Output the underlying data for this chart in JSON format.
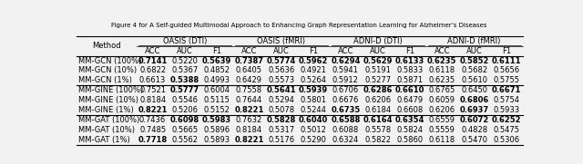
{
  "title": "Figure 4 for A Self-guided Multimodal Approach to Enhancing Graph Representation Learning for Alzheimer’s Diseases",
  "col_groups": [
    "OASIS (DTI)",
    "OASIS (fMRI)",
    "ADNI-D (DTI)",
    "ADNI-D (fMRI)"
  ],
  "sub_cols": [
    "ACC",
    "AUC",
    "F1"
  ],
  "methods": [
    "MM-GCN (100%)",
    "MM-GCN (10%)",
    "MM-GCN (1%)",
    "MM-GINE (100%)",
    "MM-GINE (10%)",
    "MM-GINE (1%)",
    "MM-GAT (100%)",
    "MM-GAT (10%)",
    "MM-GAT (1%)"
  ],
  "data": [
    [
      "0.7141",
      "0.5220",
      "0.5639",
      "0.7387",
      "0.5774",
      "0.5962",
      "0.6294",
      "0.5629",
      "0.6133",
      "0.6235",
      "0.5852",
      "0.6111"
    ],
    [
      "0.6822",
      "0.5367",
      "0.4852",
      "0.6405",
      "0.5636",
      "0.4921",
      "0.5941",
      "0.5191",
      "0.5833",
      "0.6118",
      "0.5682",
      "0.5656"
    ],
    [
      "0.6613",
      "0.5388",
      "0.4993",
      "0.6429",
      "0.5573",
      "0.5264",
      "0.5912",
      "0.5277",
      "0.5871",
      "0.6235",
      "0.5610",
      "0.5755"
    ],
    [
      "0.7521",
      "0.5777",
      "0.6004",
      "0.7558",
      "0.5641",
      "0.5939",
      "0.6706",
      "0.6286",
      "0.6610",
      "0.6765",
      "0.6450",
      "0.6671"
    ],
    [
      "0.8184",
      "0.5546",
      "0.5115",
      "0.7644",
      "0.5294",
      "0.5801",
      "0.6676",
      "0.6206",
      "0.6479",
      "0.6059",
      "0.6806",
      "0.5754"
    ],
    [
      "0.8221",
      "0.5206",
      "0.5152",
      "0.8221",
      "0.5078",
      "0.5244",
      "0.6735",
      "0.6184",
      "0.6608",
      "0.6206",
      "0.6937",
      "0.5933"
    ],
    [
      "0.7436",
      "0.6098",
      "0.5983",
      "0.7632",
      "0.5828",
      "0.6040",
      "0.6588",
      "0.6164",
      "0.6354",
      "0.6559",
      "0.6072",
      "0.6252"
    ],
    [
      "0.7485",
      "0.5665",
      "0.5896",
      "0.8184",
      "0.5317",
      "0.5012",
      "0.6088",
      "0.5578",
      "0.5824",
      "0.5559",
      "0.4828",
      "0.5475"
    ],
    [
      "0.7718",
      "0.5562",
      "0.5893",
      "0.8221",
      "0.5176",
      "0.5290",
      "0.6324",
      "0.5822",
      "0.5860",
      "0.6118",
      "0.5470",
      "0.5306"
    ]
  ],
  "bold": [
    [
      true,
      false,
      true,
      true,
      true,
      true,
      true,
      true,
      true,
      true,
      true,
      true
    ],
    [
      false,
      false,
      false,
      false,
      false,
      false,
      false,
      false,
      false,
      false,
      false,
      false
    ],
    [
      false,
      true,
      false,
      false,
      false,
      false,
      false,
      false,
      false,
      false,
      false,
      false
    ],
    [
      false,
      true,
      false,
      false,
      true,
      true,
      false,
      true,
      true,
      false,
      false,
      true
    ],
    [
      false,
      false,
      false,
      false,
      false,
      false,
      false,
      false,
      false,
      false,
      true,
      false
    ],
    [
      true,
      false,
      false,
      true,
      false,
      false,
      true,
      false,
      false,
      false,
      true,
      false
    ],
    [
      false,
      true,
      true,
      false,
      true,
      true,
      true,
      true,
      true,
      false,
      true,
      true
    ],
    [
      false,
      false,
      false,
      false,
      false,
      false,
      false,
      false,
      false,
      false,
      false,
      false
    ],
    [
      true,
      false,
      false,
      true,
      false,
      false,
      false,
      false,
      false,
      false,
      false,
      false
    ]
  ],
  "separator_rows": [
    2,
    5
  ],
  "bg_color": "#f2f2f2",
  "text_color": "#000000",
  "title_fontsize": 5.0,
  "data_fontsize": 6.0,
  "header_fontsize": 6.0
}
